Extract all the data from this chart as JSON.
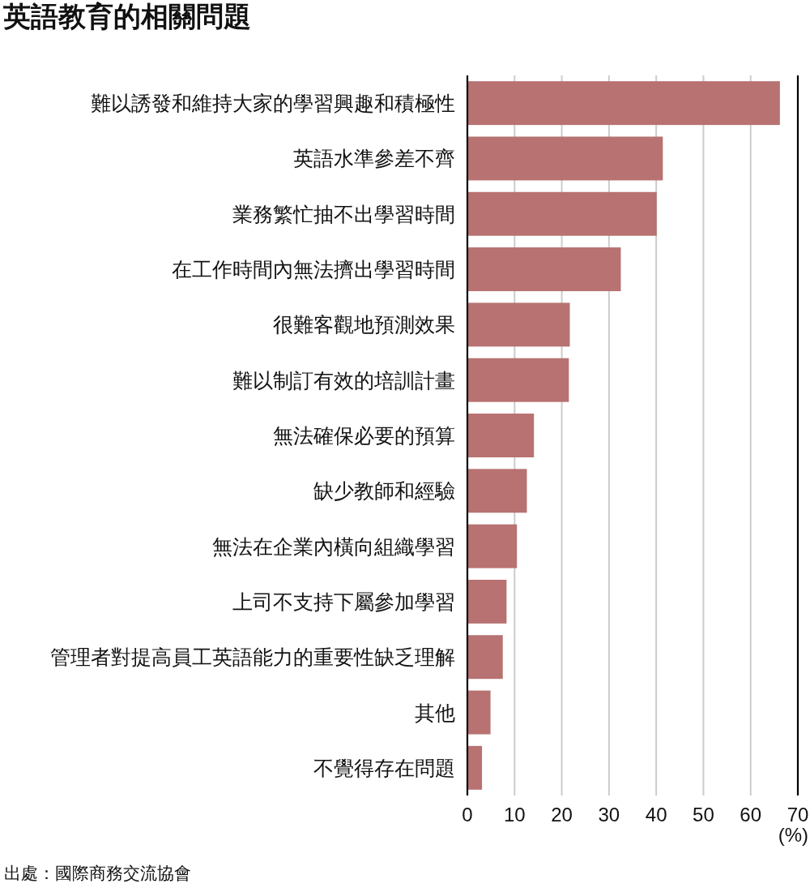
{
  "chart_data": {
    "type": "bar",
    "orientation": "horizontal",
    "title": "英語教育的相關問題",
    "xlabel": "(%)",
    "categories": [
      "難以誘發和維持大家的學習興趣和積極性",
      "英語水準參差不齊",
      "業務繁忙抽不出學習時間",
      "在工作時間內無法擠出學習時間",
      "很難客觀地預測效果",
      "難以制訂有效的培訓計畫",
      "無法確保必要的預算",
      "缺少教師和經驗",
      "無法在企業內橫向組織學習",
      "上司不支持下屬參加學習",
      "管理者對提高員工英語能力的重要性缺乏理解",
      "其他",
      "不覺得存在問題"
    ],
    "values": [
      66.2,
      41.4,
      40.1,
      32.5,
      21.7,
      21.5,
      14.1,
      12.6,
      10.5,
      8.3,
      7.5,
      4.9,
      3.1
    ],
    "color": "#b77271",
    "xlim": [
      0,
      70
    ],
    "xticks": [
      0,
      10,
      20,
      30,
      40,
      50,
      60,
      70
    ],
    "grid": "x",
    "annotations": [
      "出處：國際商務交流協會"
    ]
  }
}
